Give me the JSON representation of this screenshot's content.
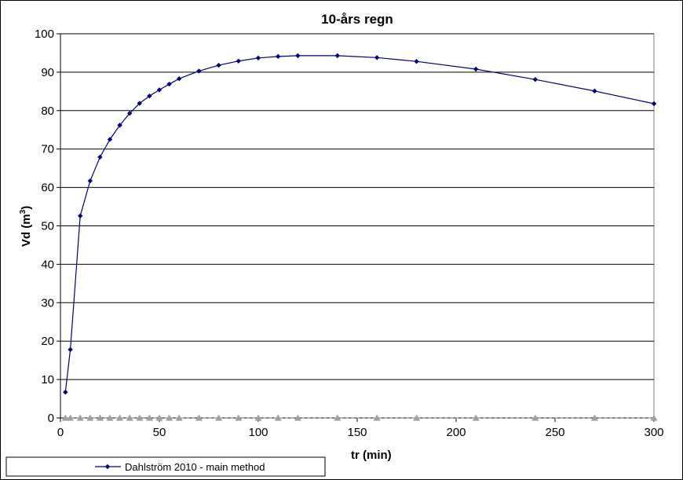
{
  "chart_data": {
    "type": "line",
    "title": "10-års regn",
    "xlabel": "tr (min)",
    "ylabel": "Vd (m",
    "ylabel_superscript": "3",
    "ylabel_close": ")",
    "xlim": [
      0,
      300
    ],
    "ylim": [
      0,
      100
    ],
    "x_ticks": [
      0,
      50,
      100,
      150,
      200,
      250,
      300
    ],
    "y_ticks": [
      0,
      10,
      20,
      30,
      40,
      50,
      60,
      70,
      80,
      90,
      100
    ],
    "grid": "horizontal",
    "legend_placement": "bottom-left",
    "series": [
      {
        "name": "Dahlström 2010 - main method",
        "color": "#000080",
        "marker": "diamond",
        "x": [
          2.5,
          5,
          10,
          15,
          20,
          25,
          30,
          35,
          40,
          45,
          50,
          55,
          60,
          70,
          80,
          90,
          100,
          110,
          120,
          140,
          160,
          180,
          210,
          240,
          270,
          300
        ],
        "y": [
          6.7,
          17.8,
          52.6,
          61.7,
          67.9,
          72.5,
          76.2,
          79.3,
          81.9,
          83.8,
          85.4,
          86.9,
          88.3,
          90.3,
          91.8,
          92.9,
          93.7,
          94.1,
          94.3,
          94.3,
          93.8,
          92.8,
          90.8,
          88.1,
          85.1,
          81.8
        ]
      },
      {
        "name": "",
        "color": "#a0a0a0",
        "marker": "triangle",
        "line": "dashed",
        "x": [
          2.5,
          5,
          10,
          15,
          20,
          25,
          30,
          35,
          40,
          45,
          50,
          55,
          60,
          70,
          80,
          90,
          100,
          110,
          120,
          140,
          160,
          180,
          210,
          240,
          270,
          300
        ],
        "y": [
          0,
          0,
          0,
          0,
          0,
          0,
          0,
          0,
          0,
          0,
          0,
          0,
          0,
          0,
          0,
          0,
          0,
          0,
          0,
          0,
          0,
          0,
          0,
          0,
          0,
          0
        ]
      }
    ]
  }
}
